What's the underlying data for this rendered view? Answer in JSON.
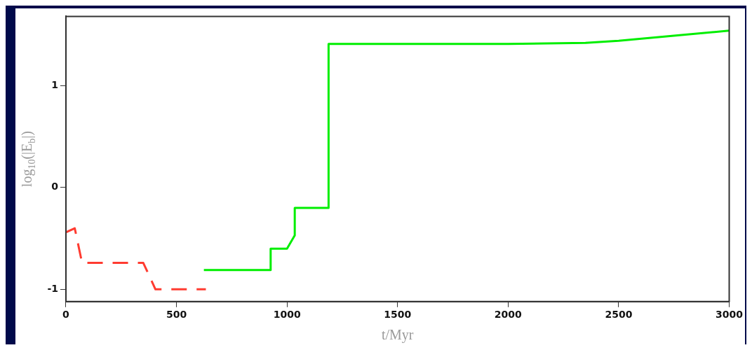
{
  "chart_data": {
    "type": "line",
    "xlabel": "t/Myr",
    "ylabel": "log$_{10}$(|E$_{b}$|)",
    "xlim": [
      0,
      3000
    ],
    "ylim": [
      -1.12,
      1.68
    ],
    "xticks": [
      0,
      500,
      1000,
      1500,
      2000,
      2500,
      3000
    ],
    "yticks": [
      -1,
      0,
      1
    ],
    "marker": "none",
    "series": [
      {
        "color": "#ff3b30",
        "line_style": "dashed",
        "x": [
          0,
          40,
          73,
          350,
          405,
          633
        ],
        "values": [
          -0.44,
          -0.4,
          -0.74,
          -0.74,
          -1.0,
          -1.0
        ]
      },
      {
        "color": "#00ee00",
        "line_style": "solid",
        "x": [
          624,
          926,
          926,
          1000,
          1035,
          1035,
          1188,
          1188,
          1500,
          2000,
          2350,
          2500,
          2750,
          3000
        ],
        "values": [
          -0.81,
          -0.81,
          -0.6,
          -0.6,
          -0.47,
          -0.2,
          -0.2,
          1.41,
          1.41,
          1.41,
          1.42,
          1.44,
          1.49,
          1.54
        ]
      }
    ]
  }
}
